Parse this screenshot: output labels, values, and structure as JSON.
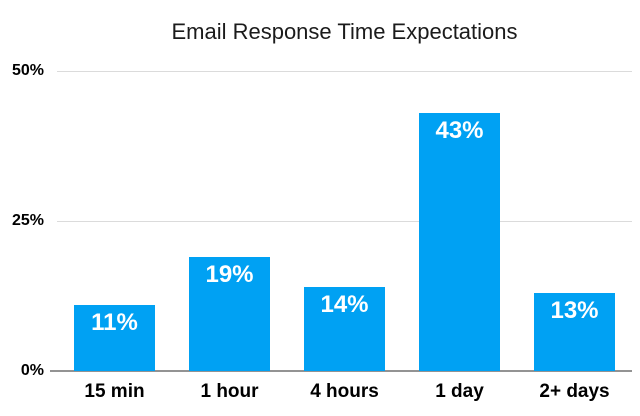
{
  "chart_data": {
    "type": "bar",
    "title": "Email Response Time Expectations",
    "categories": [
      "15 min",
      "1 hour",
      "4 hours",
      "1 day",
      "2+ days"
    ],
    "values": [
      11,
      19,
      14,
      43,
      13
    ],
    "value_labels": [
      "11%",
      "19%",
      "14%",
      "43%",
      "13%"
    ],
    "xlabel": "",
    "ylabel": "",
    "ylim": [
      0,
      50
    ],
    "yticks": [
      {
        "value": 0,
        "label": "0%"
      },
      {
        "value": 25,
        "label": "25%"
      },
      {
        "value": 50,
        "label": "50%"
      }
    ],
    "grid": "horizontal",
    "legend": "none",
    "colors": {
      "bar_fill": "#00A1F3",
      "value_label": "#FFFFFF",
      "gridline": "#DBDBDB",
      "axis_line": "#939393",
      "title_text": "#1B1B1B",
      "tick_text": "#000000",
      "background": "#FFFFFF"
    }
  }
}
